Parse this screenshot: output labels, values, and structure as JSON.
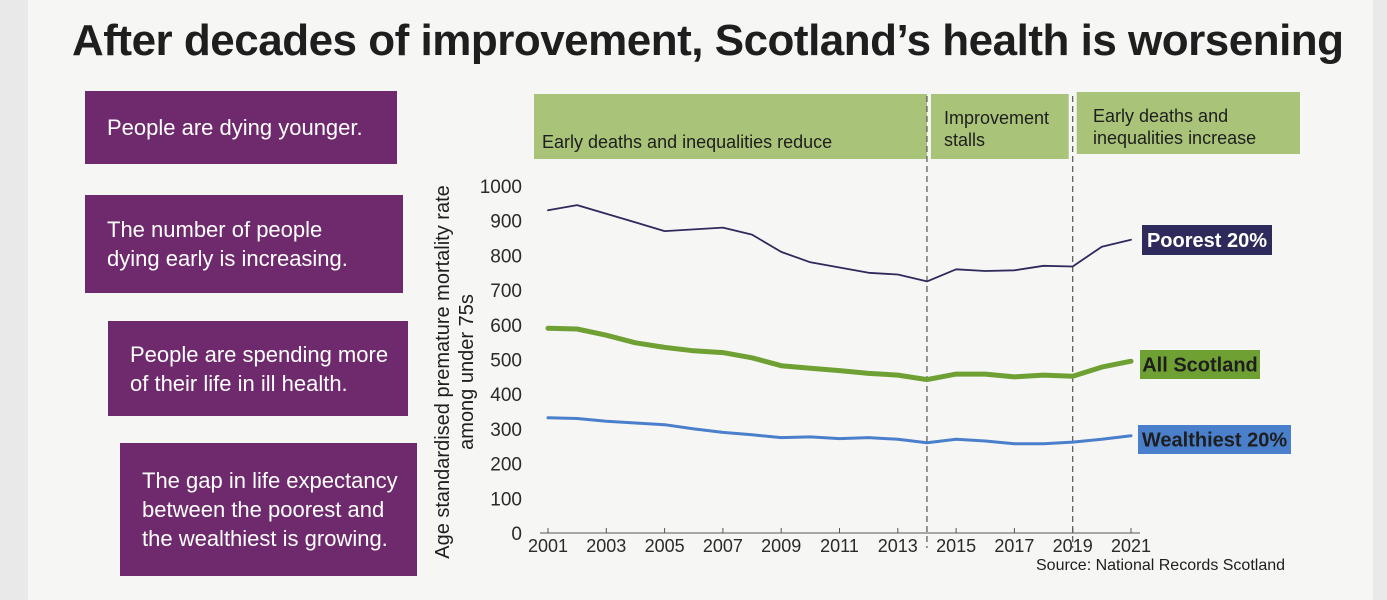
{
  "title": "After decades of improvement, Scotland’s health is worsening",
  "callouts": [
    "People are dying younger.",
    "The number of people\ndying early is increasing.",
    "People are spending more\nof their life in ill health.",
    "The gap in life expectancy\nbetween the poorest and\nthe wealthiest is growing."
  ],
  "phases": [
    "Early deaths and inequalities reduce",
    "Improvement\nstalls",
    "Early deaths and\ninequalities increase"
  ],
  "source": "Source: National Records Scotland",
  "colors": {
    "callout_bg": "#6e2a6c",
    "phase_bg": "#a9c378",
    "poorest": "#2e2a5c",
    "all_scotland": "#6fa034",
    "wealthiest": "#4a7fcc"
  },
  "chart_data": {
    "type": "line",
    "title": "",
    "xlabel": "",
    "ylabel": "Age standardised premature mortality rate among under 75s",
    "ylim": [
      0,
      1000
    ],
    "xlim": [
      2001,
      2021
    ],
    "yticks": [
      "0",
      "100",
      "200",
      "300",
      "400",
      "500",
      "600",
      "700",
      "800",
      "900",
      "1000"
    ],
    "xticks": [
      "2001",
      "2003",
      "2005",
      "2007",
      "2009",
      "2011",
      "2013",
      "2015",
      "2017",
      "2019",
      "2021"
    ],
    "phase_boundaries": [
      2014,
      2019
    ],
    "x": [
      2001,
      2002,
      2003,
      2004,
      2005,
      2006,
      2007,
      2008,
      2009,
      2010,
      2011,
      2012,
      2013,
      2014,
      2015,
      2016,
      2017,
      2018,
      2019,
      2020,
      2021
    ],
    "series": [
      {
        "name": "Poorest 20%",
        "values": [
          930,
          945,
          920,
          895,
          870,
          875,
          880,
          860,
          810,
          780,
          765,
          750,
          745,
          725,
          760,
          755,
          757,
          770,
          768,
          825,
          845
        ]
      },
      {
        "name": "All Scotland",
        "values": [
          590,
          588,
          570,
          548,
          535,
          525,
          520,
          505,
          482,
          475,
          468,
          460,
          455,
          442,
          458,
          458,
          450,
          455,
          452,
          478,
          495
        ]
      },
      {
        "name": "Wealthiest 20%",
        "values": [
          332,
          330,
          322,
          317,
          312,
          300,
          290,
          283,
          275,
          277,
          272,
          275,
          270,
          260,
          270,
          265,
          257,
          257,
          262,
          270,
          280
        ]
      }
    ]
  }
}
